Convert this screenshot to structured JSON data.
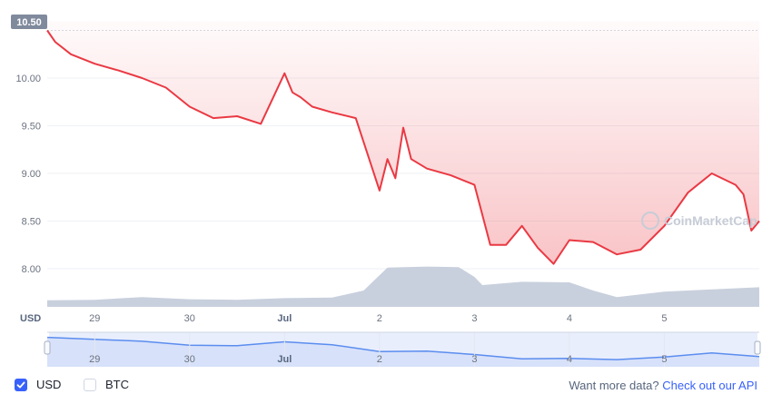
{
  "chart_data": {
    "type": "line",
    "price_series": {
      "x": [
        "28 Jun 12:00",
        "28 Jun 14:00",
        "28 Jun 18:00",
        "29 Jun 00:00",
        "29 Jun 06:00",
        "29 Jun 12:00",
        "29 Jun 18:00",
        "30 Jun 00:00",
        "30 Jun 06:00",
        "30 Jun 12:00",
        "30 Jun 18:00",
        "1 Jul 00:00",
        "1 Jul 02:00",
        "1 Jul 04:00",
        "1 Jul 07:00",
        "1 Jul 12:00",
        "1 Jul 18:00",
        "2 Jul 00:00",
        "2 Jul 02:00",
        "2 Jul 04:00",
        "2 Jul 06:00",
        "2 Jul 08:00",
        "2 Jul 12:00",
        "2 Jul 18:00",
        "3 Jul 00:00",
        "3 Jul 04:00",
        "3 Jul 08:00",
        "3 Jul 12:00",
        "3 Jul 16:00",
        "3 Jul 20:00",
        "4 Jul 00:00",
        "4 Jul 06:00",
        "4 Jul 12:00",
        "4 Jul 18:00",
        "5 Jul 00:00",
        "5 Jul 06:00",
        "5 Jul 12:00",
        "5 Jul 18:00",
        "5 Jul 20:00",
        "5 Jul 22:00",
        "6 Jul 00:00"
      ],
      "y": [
        10.5,
        10.38,
        10.25,
        10.15,
        10.08,
        10.0,
        9.9,
        9.7,
        9.58,
        9.6,
        9.52,
        10.05,
        9.85,
        9.8,
        9.7,
        9.64,
        9.58,
        8.82,
        9.15,
        8.95,
        9.48,
        9.15,
        9.05,
        8.98,
        8.88,
        8.25,
        8.25,
        8.45,
        8.22,
        8.05,
        8.3,
        8.28,
        8.15,
        8.2,
        8.45,
        8.8,
        9.0,
        8.88,
        8.78,
        8.4,
        8.5
      ]
    },
    "volume_series": {
      "x": [
        "28 Jun 12:00",
        "29 Jun 00:00",
        "29 Jun 12:00",
        "30 Jun 00:00",
        "30 Jun 12:00",
        "1 Jul 00:00",
        "1 Jul 12:00",
        "1 Jul 20:00",
        "2 Jul 02:00",
        "2 Jul 12:00",
        "2 Jul 20:00",
        "3 Jul 00:00",
        "3 Jul 02:00",
        "3 Jul 12:00",
        "4 Jul 00:00",
        "4 Jul 06:00",
        "4 Jul 12:00",
        "5 Jul 00:00",
        "5 Jul 12:00",
        "6 Jul 00:00"
      ],
      "y": [
        0.12,
        0.13,
        0.18,
        0.14,
        0.13,
        0.16,
        0.17,
        0.3,
        0.72,
        0.74,
        0.73,
        0.55,
        0.4,
        0.46,
        0.45,
        0.3,
        0.18,
        0.28,
        0.32,
        0.36
      ],
      "unit": "relative"
    },
    "navigator_series": {
      "x": [
        "28 Jun 12:00",
        "29 Jun 12:00",
        "30 Jun 00:00",
        "30 Jun 12:00",
        "1 Jul 00:00",
        "1 Jul 12:00",
        "2 Jul 00:00",
        "2 Jul 12:00",
        "3 Jul 00:00",
        "3 Jul 12:00",
        "4 Jul 00:00",
        "4 Jul 12:00",
        "5 Jul 00:00",
        "5 Jul 12:00",
        "6 Jul 00:00"
      ],
      "y": [
        10.45,
        10.05,
        9.65,
        9.6,
        10.0,
        9.7,
        9.0,
        9.05,
        8.7,
        8.25,
        8.3,
        8.18,
        8.45,
        8.85,
        8.48
      ]
    },
    "ylim": [
      7.6,
      10.6
    ],
    "y_ticks": [
      "10.50",
      "10.00",
      "9.50",
      "9.00",
      "8.50",
      "8.00"
    ],
    "x_ticks": [
      {
        "label": "29",
        "bold": false
      },
      {
        "label": "30",
        "bold": false
      },
      {
        "label": "Jul",
        "bold": true
      },
      {
        "label": "2",
        "bold": false
      },
      {
        "label": "3",
        "bold": false
      },
      {
        "label": "4",
        "bold": false
      },
      {
        "label": "5",
        "bold": false
      }
    ],
    "current_price_label": "10.50",
    "currency_label": "USD",
    "watermark": "CoinMarketCap",
    "grid": true,
    "colors": {
      "line": "#ea3943",
      "fill_top": "#ea3943",
      "volume": "#c9d0dd",
      "navigator_line": "#5b8def",
      "navigator_fill": "#e8eefc",
      "price_tag": "#808a9d"
    }
  },
  "footer": {
    "usd_label": "USD",
    "btc_label": "BTC",
    "usd_checked": true,
    "btc_checked": false,
    "more_data_text": "Want more data?",
    "api_link_text": "Check out our API"
  }
}
